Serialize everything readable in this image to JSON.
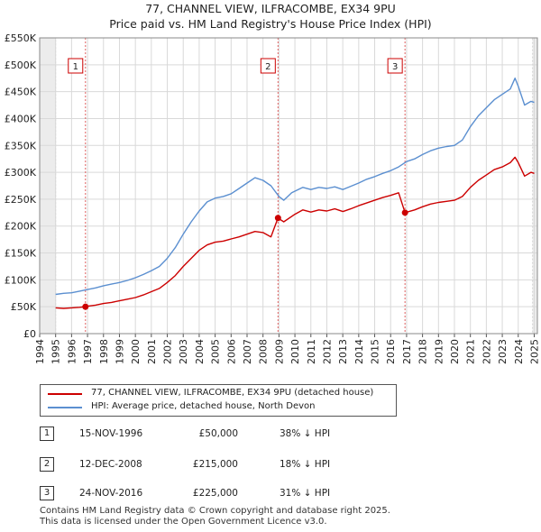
{
  "chart_data": {
    "type": "line",
    "title": "77, CHANNEL VIEW, ILFRACOMBE, EX34 9PU",
    "subtitle": "Price paid vs. HM Land Registry's House Price Index (HPI)",
    "xlabel": "",
    "ylabel": "",
    "xlim": [
      1994,
      2025.2
    ],
    "ylim": [
      0,
      550000
    ],
    "grid": true,
    "y_ticks": [
      {
        "value": 0,
        "label": "£0"
      },
      {
        "value": 50000,
        "label": "£50K"
      },
      {
        "value": 100000,
        "label": "£100K"
      },
      {
        "value": 150000,
        "label": "£150K"
      },
      {
        "value": 200000,
        "label": "£200K"
      },
      {
        "value": 250000,
        "label": "£250K"
      },
      {
        "value": 300000,
        "label": "£300K"
      },
      {
        "value": 350000,
        "label": "£350K"
      },
      {
        "value": 400000,
        "label": "£400K"
      },
      {
        "value": 450000,
        "label": "£450K"
      },
      {
        "value": 500000,
        "label": "£500K"
      },
      {
        "value": 550000,
        "label": "£550K"
      }
    ],
    "x_ticks": [
      "1994",
      "1995",
      "1996",
      "1997",
      "1998",
      "1999",
      "2000",
      "2001",
      "2002",
      "2003",
      "2004",
      "2005",
      "2006",
      "2007",
      "2008",
      "2009",
      "2010",
      "2011",
      "2012",
      "2013",
      "2014",
      "2015",
      "2016",
      "2017",
      "2018",
      "2019",
      "2020",
      "2021",
      "2022",
      "2023",
      "2024",
      "2025"
    ],
    "series": [
      {
        "name": "HPI: Average price, detached house, North Devon",
        "color": "#5b8fd0",
        "points": [
          [
            1995.0,
            73000
          ],
          [
            1995.5,
            75000
          ],
          [
            1996.0,
            76000
          ],
          [
            1996.5,
            79000
          ],
          [
            1997.0,
            82000
          ],
          [
            1997.5,
            85000
          ],
          [
            1998.0,
            89000
          ],
          [
            1998.5,
            92000
          ],
          [
            1999.0,
            95000
          ],
          [
            1999.5,
            99000
          ],
          [
            2000.0,
            104000
          ],
          [
            2000.5,
            110000
          ],
          [
            2001.0,
            117000
          ],
          [
            2001.5,
            125000
          ],
          [
            2002.0,
            140000
          ],
          [
            2002.5,
            160000
          ],
          [
            2003.0,
            185000
          ],
          [
            2003.5,
            208000
          ],
          [
            2004.0,
            228000
          ],
          [
            2004.5,
            245000
          ],
          [
            2005.0,
            252000
          ],
          [
            2005.5,
            255000
          ],
          [
            2006.0,
            260000
          ],
          [
            2006.5,
            270000
          ],
          [
            2007.0,
            280000
          ],
          [
            2007.5,
            290000
          ],
          [
            2008.0,
            285000
          ],
          [
            2008.5,
            275000
          ],
          [
            2009.0,
            255000
          ],
          [
            2009.3,
            248000
          ],
          [
            2009.8,
            262000
          ],
          [
            2010.5,
            272000
          ],
          [
            2011.0,
            268000
          ],
          [
            2011.5,
            272000
          ],
          [
            2012.0,
            270000
          ],
          [
            2012.5,
            273000
          ],
          [
            2013.0,
            268000
          ],
          [
            2013.5,
            274000
          ],
          [
            2014.0,
            280000
          ],
          [
            2014.5,
            287000
          ],
          [
            2015.0,
            292000
          ],
          [
            2015.5,
            298000
          ],
          [
            2016.0,
            303000
          ],
          [
            2016.5,
            310000
          ],
          [
            2017.0,
            320000
          ],
          [
            2017.5,
            325000
          ],
          [
            2018.0,
            333000
          ],
          [
            2018.5,
            340000
          ],
          [
            2019.0,
            345000
          ],
          [
            2019.5,
            348000
          ],
          [
            2020.0,
            350000
          ],
          [
            2020.5,
            360000
          ],
          [
            2021.0,
            385000
          ],
          [
            2021.5,
            405000
          ],
          [
            2022.0,
            420000
          ],
          [
            2022.5,
            435000
          ],
          [
            2023.0,
            445000
          ],
          [
            2023.5,
            455000
          ],
          [
            2023.8,
            475000
          ],
          [
            2024.0,
            460000
          ],
          [
            2024.4,
            425000
          ],
          [
            2024.8,
            432000
          ],
          [
            2025.0,
            430000
          ]
        ]
      },
      {
        "name": "77, CHANNEL VIEW, ILFRACOMBE, EX34 9PU (detached house)",
        "color": "#cc0000",
        "points": [
          [
            1995.0,
            48000
          ],
          [
            1995.5,
            47000
          ],
          [
            1996.0,
            48000
          ],
          [
            1996.5,
            49000
          ],
          [
            1996.87,
            50000
          ],
          [
            1997.0,
            51000
          ],
          [
            1997.5,
            53000
          ],
          [
            1998.0,
            56000
          ],
          [
            1998.5,
            58000
          ],
          [
            1999.0,
            61000
          ],
          [
            1999.5,
            64000
          ],
          [
            2000.0,
            67000
          ],
          [
            2000.5,
            72000
          ],
          [
            2001.0,
            78000
          ],
          [
            2001.5,
            84000
          ],
          [
            2002.0,
            95000
          ],
          [
            2002.5,
            108000
          ],
          [
            2003.0,
            125000
          ],
          [
            2003.5,
            140000
          ],
          [
            2004.0,
            155000
          ],
          [
            2004.5,
            165000
          ],
          [
            2005.0,
            170000
          ],
          [
            2005.5,
            172000
          ],
          [
            2006.0,
            176000
          ],
          [
            2006.5,
            180000
          ],
          [
            2007.0,
            185000
          ],
          [
            2007.5,
            190000
          ],
          [
            2008.0,
            188000
          ],
          [
            2008.5,
            180000
          ],
          [
            2008.94,
            215000
          ],
          [
            2009.3,
            208000
          ],
          [
            2010.0,
            222000
          ],
          [
            2010.5,
            230000
          ],
          [
            2011.0,
            226000
          ],
          [
            2011.5,
            230000
          ],
          [
            2012.0,
            228000
          ],
          [
            2012.5,
            232000
          ],
          [
            2013.0,
            227000
          ],
          [
            2013.5,
            232000
          ],
          [
            2014.0,
            238000
          ],
          [
            2014.5,
            243000
          ],
          [
            2015.0,
            248000
          ],
          [
            2015.5,
            253000
          ],
          [
            2016.0,
            257000
          ],
          [
            2016.5,
            262000
          ],
          [
            2016.9,
            225000
          ],
          [
            2017.5,
            230000
          ],
          [
            2018.0,
            236000
          ],
          [
            2018.5,
            241000
          ],
          [
            2019.0,
            244000
          ],
          [
            2019.5,
            246000
          ],
          [
            2020.0,
            248000
          ],
          [
            2020.5,
            255000
          ],
          [
            2021.0,
            272000
          ],
          [
            2021.5,
            285000
          ],
          [
            2022.0,
            295000
          ],
          [
            2022.5,
            305000
          ],
          [
            2023.0,
            310000
          ],
          [
            2023.5,
            318000
          ],
          [
            2023.8,
            328000
          ],
          [
            2024.0,
            318000
          ],
          [
            2024.4,
            293000
          ],
          [
            2024.8,
            300000
          ],
          [
            2025.0,
            298000
          ]
        ]
      }
    ],
    "sales": [
      {
        "id": "1",
        "x": 1996.87,
        "value": 50000
      },
      {
        "id": "2",
        "x": 2008.94,
        "value": 215000
      },
      {
        "id": "3",
        "x": 2016.9,
        "value": 225000
      }
    ],
    "shaded_ranges": [
      [
        1994,
        1995.0
      ],
      [
        2024.9,
        2025.2
      ]
    ]
  },
  "legend": {
    "property_label": "77, CHANNEL VIEW, ILFRACOMBE, EX34 9PU (detached house)",
    "hpi_label": "HPI: Average price, detached house, North Devon"
  },
  "sales_table": [
    {
      "id": "1",
      "date": "15-NOV-1996",
      "price": "£50,000",
      "hpi": "38% ↓ HPI"
    },
    {
      "id": "2",
      "date": "12-DEC-2008",
      "price": "£215,000",
      "hpi": "18% ↓ HPI"
    },
    {
      "id": "3",
      "date": "24-NOV-2016",
      "price": "£225,000",
      "hpi": "31% ↓ HPI"
    }
  ],
  "footer": {
    "line1": "Contains HM Land Registry data © Crown copyright and database right 2025.",
    "line2": "This data is licensed under the Open Government Licence v3.0."
  }
}
